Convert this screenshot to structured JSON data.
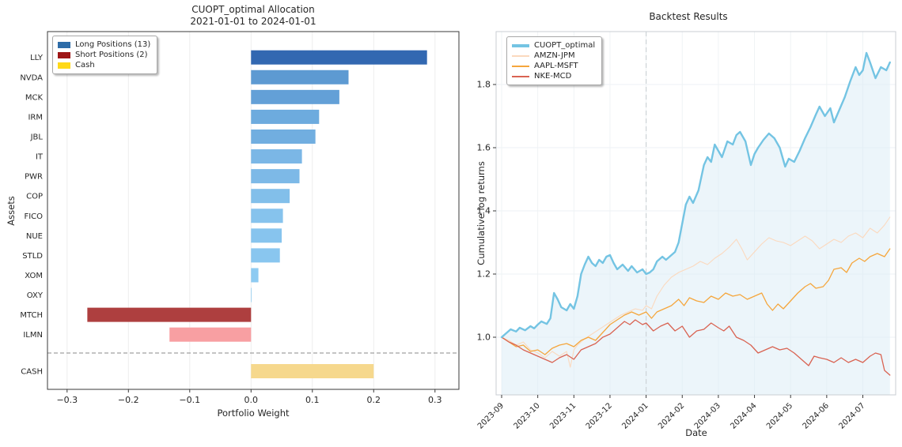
{
  "figure": {
    "background": "#ffffff"
  },
  "chart_data": [
    {
      "type": "bar",
      "orientation": "horizontal",
      "title": "CUOPT_optimal Allocation",
      "subtitle": "2021-01-01 to 2024-01-01",
      "xlabel": "Portfolio Weight",
      "ylabel": "Assets",
      "xlim": [
        -0.332,
        0.339
      ],
      "grid": "vertical-faint",
      "xticks": {
        "values": [
          -0.3,
          -0.2,
          -0.1,
          0.0,
          0.1,
          0.2,
          0.3
        ],
        "labels": [
          "−0.3",
          "−0.2",
          "−0.1",
          "0.0",
          "0.1",
          "0.2",
          "0.3"
        ]
      },
      "legend": {
        "position": "upper left",
        "items": [
          {
            "label": "Long Positions (13)",
            "color": "#2e6ca8"
          },
          {
            "label": "Short Positions (2)",
            "color": "#9e1616"
          },
          {
            "label": "Cash",
            "color": "#ffd918"
          }
        ]
      },
      "separator_before_last_row": true,
      "bars": [
        {
          "asset": "LLY",
          "value": 0.287,
          "color": "#3268b1",
          "group": "long"
        },
        {
          "asset": "NVDA",
          "value": 0.159,
          "color": "#5d9ad2",
          "group": "long"
        },
        {
          "asset": "MCK",
          "value": 0.144,
          "color": "#63a0d7",
          "group": "long"
        },
        {
          "asset": "IRM",
          "value": 0.111,
          "color": "#6dabde",
          "group": "long"
        },
        {
          "asset": "JBL",
          "value": 0.105,
          "color": "#71aee0",
          "group": "long"
        },
        {
          "asset": "IT",
          "value": 0.083,
          "color": "#7bb7e6",
          "group": "long"
        },
        {
          "asset": "PWR",
          "value": 0.079,
          "color": "#7db9e7",
          "group": "long"
        },
        {
          "asset": "COP",
          "value": 0.063,
          "color": "#82bfea",
          "group": "long"
        },
        {
          "asset": "FICO",
          "value": 0.052,
          "color": "#86c3ed",
          "group": "long"
        },
        {
          "asset": "NUE",
          "value": 0.05,
          "color": "#87c4ee",
          "group": "long"
        },
        {
          "asset": "STLD",
          "value": 0.047,
          "color": "#89c6ef",
          "group": "long"
        },
        {
          "asset": "XOM",
          "value": 0.012,
          "color": "#8ecbf2",
          "group": "long"
        },
        {
          "asset": "OXY",
          "value": 0.001,
          "color": "#90cdf3",
          "group": "long"
        },
        {
          "asset": "MTCH",
          "value": -0.267,
          "color": "#ae3f3f",
          "group": "short"
        },
        {
          "asset": "ILMN",
          "value": -0.133,
          "color": "#f89fa2",
          "group": "short"
        },
        {
          "asset": "CASH",
          "value": 0.2,
          "color": "#f6d88d",
          "group": "cash"
        }
      ]
    },
    {
      "type": "line",
      "title": "Backtest Results",
      "xlabel": "Date",
      "ylabel": "Cumulative log returns",
      "ylim": [
        0.8175,
        1.9675
      ],
      "grid": "both-faint",
      "yticks": {
        "values": [
          1.0,
          1.2,
          1.4,
          1.6,
          1.8
        ],
        "labels": [
          "1.0",
          "1.2",
          "1.4",
          "1.6",
          "1.8"
        ]
      },
      "xticks": {
        "values": [
          0,
          1,
          2,
          3,
          4,
          5,
          6,
          7,
          8,
          9,
          10
        ],
        "labels": [
          "2023-09",
          "2023-10",
          "2023-11",
          "2023-12",
          "2024-01",
          "2024-02",
          "2024-03",
          "2024-04",
          "2024-05",
          "2024-06",
          "2024-07"
        ]
      },
      "vline": {
        "x": 4,
        "at_label": "2024-01",
        "style": "dashed",
        "color": "#cdd3d7"
      },
      "legend": {
        "position": "upper left",
        "items": [
          {
            "label": "CUOPT_optimal",
            "color": "#74c4e3"
          },
          {
            "label": "AMZN-JPM",
            "color": "#fbd9be"
          },
          {
            "label": "AAPL-MSFT",
            "color": "#f5a63c"
          },
          {
            "label": "NKE-MCD",
            "color": "#d96352"
          }
        ]
      },
      "series": [
        {
          "name": "CUOPT_optimal",
          "color": "#74c4e3",
          "width": 2.4,
          "fill": "#d9ecf5",
          "x": [
            0,
            0.1,
            0.25,
            0.4,
            0.5,
            0.65,
            0.8,
            0.9,
            1.0,
            1.1,
            1.25,
            1.35,
            1.45,
            1.55,
            1.65,
            1.8,
            1.9,
            2.0,
            2.1,
            2.2,
            2.3,
            2.4,
            2.5,
            2.6,
            2.7,
            2.8,
            2.9,
            3.0,
            3.1,
            3.2,
            3.35,
            3.5,
            3.6,
            3.75,
            3.9,
            4.0,
            4.1,
            4.2,
            4.3,
            4.45,
            4.55,
            4.7,
            4.8,
            4.9,
            5.0,
            5.1,
            5.2,
            5.3,
            5.45,
            5.6,
            5.7,
            5.8,
            5.9,
            6.0,
            6.1,
            6.25,
            6.4,
            6.5,
            6.6,
            6.75,
            6.9,
            7.0,
            7.1,
            7.25,
            7.4,
            7.55,
            7.7,
            7.85,
            7.95,
            8.1,
            8.25,
            8.4,
            8.55,
            8.7,
            8.8,
            8.95,
            9.1,
            9.2,
            9.35,
            9.5,
            9.65,
            9.8,
            9.9,
            10.0,
            10.1,
            10.2,
            10.35,
            10.5,
            10.65,
            10.75
          ],
          "y": [
            1.0,
            1.01,
            1.025,
            1.018,
            1.03,
            1.022,
            1.035,
            1.028,
            1.04,
            1.05,
            1.042,
            1.06,
            1.14,
            1.12,
            1.095,
            1.085,
            1.105,
            1.09,
            1.13,
            1.2,
            1.23,
            1.255,
            1.235,
            1.225,
            1.245,
            1.235,
            1.255,
            1.26,
            1.235,
            1.215,
            1.23,
            1.21,
            1.225,
            1.205,
            1.215,
            1.2,
            1.205,
            1.215,
            1.24,
            1.255,
            1.245,
            1.26,
            1.27,
            1.3,
            1.36,
            1.42,
            1.445,
            1.425,
            1.465,
            1.545,
            1.57,
            1.555,
            1.61,
            1.59,
            1.57,
            1.62,
            1.61,
            1.64,
            1.65,
            1.62,
            1.545,
            1.58,
            1.6,
            1.625,
            1.645,
            1.63,
            1.6,
            1.54,
            1.565,
            1.555,
            1.59,
            1.63,
            1.665,
            1.705,
            1.73,
            1.7,
            1.725,
            1.68,
            1.72,
            1.76,
            1.81,
            1.855,
            1.83,
            1.845,
            1.9,
            1.87,
            1.82,
            1.855,
            1.845,
            1.87
          ]
        },
        {
          "name": "AMZN-JPM",
          "color": "#fbd9be",
          "width": 1.1,
          "x": [
            0,
            0.2,
            0.4,
            0.6,
            0.8,
            1.0,
            1.2,
            1.4,
            1.6,
            1.8,
            1.9,
            2.0,
            2.1,
            2.3,
            2.5,
            2.7,
            2.9,
            3.1,
            3.3,
            3.5,
            3.7,
            3.9,
            4.0,
            4.15,
            4.3,
            4.5,
            4.7,
            4.9,
            5.1,
            5.3,
            5.5,
            5.7,
            5.9,
            6.1,
            6.3,
            6.5,
            6.65,
            6.8,
            7.0,
            7.2,
            7.4,
            7.6,
            7.8,
            8.0,
            8.2,
            8.4,
            8.6,
            8.8,
            9.0,
            9.2,
            9.4,
            9.6,
            9.8,
            10.0,
            10.2,
            10.4,
            10.6,
            10.75
          ],
          "y": [
            1.0,
            0.99,
            0.975,
            0.985,
            0.96,
            0.95,
            0.935,
            0.955,
            0.94,
            0.955,
            0.905,
            0.96,
            0.975,
            0.995,
            1.01,
            1.025,
            1.04,
            1.055,
            1.07,
            1.08,
            1.09,
            1.085,
            1.1,
            1.09,
            1.13,
            1.165,
            1.19,
            1.205,
            1.215,
            1.225,
            1.24,
            1.23,
            1.25,
            1.265,
            1.285,
            1.31,
            1.28,
            1.245,
            1.27,
            1.295,
            1.315,
            1.305,
            1.3,
            1.29,
            1.305,
            1.32,
            1.305,
            1.28,
            1.295,
            1.31,
            1.3,
            1.32,
            1.33,
            1.315,
            1.345,
            1.33,
            1.355,
            1.38
          ]
        },
        {
          "name": "AAPL-MSFT",
          "color": "#f5a63c",
          "width": 1.3,
          "x": [
            0,
            0.2,
            0.4,
            0.6,
            0.8,
            1.0,
            1.2,
            1.4,
            1.6,
            1.8,
            2.0,
            2.2,
            2.4,
            2.6,
            2.8,
            3.0,
            3.2,
            3.4,
            3.6,
            3.8,
            4.0,
            4.15,
            4.3,
            4.5,
            4.7,
            4.9,
            5.05,
            5.2,
            5.4,
            5.6,
            5.8,
            6.0,
            6.2,
            6.4,
            6.6,
            6.8,
            7.0,
            7.2,
            7.35,
            7.5,
            7.65,
            7.8,
            8.0,
            8.2,
            8.4,
            8.55,
            8.7,
            8.9,
            9.05,
            9.2,
            9.4,
            9.55,
            9.7,
            9.9,
            10.05,
            10.2,
            10.4,
            10.6,
            10.75
          ],
          "y": [
            1.0,
            0.985,
            0.97,
            0.975,
            0.955,
            0.96,
            0.945,
            0.965,
            0.975,
            0.98,
            0.97,
            0.99,
            1.0,
            0.99,
            1.015,
            1.04,
            1.055,
            1.07,
            1.08,
            1.07,
            1.08,
            1.06,
            1.08,
            1.09,
            1.1,
            1.12,
            1.1,
            1.125,
            1.115,
            1.11,
            1.13,
            1.12,
            1.14,
            1.13,
            1.135,
            1.12,
            1.13,
            1.14,
            1.105,
            1.085,
            1.105,
            1.09,
            1.115,
            1.14,
            1.16,
            1.17,
            1.155,
            1.16,
            1.18,
            1.215,
            1.22,
            1.205,
            1.235,
            1.25,
            1.24,
            1.255,
            1.265,
            1.255,
            1.28
          ]
        },
        {
          "name": "NKE-MCD",
          "color": "#d96352",
          "width": 1.3,
          "x": [
            0,
            0.2,
            0.4,
            0.6,
            0.8,
            1.0,
            1.2,
            1.4,
            1.6,
            1.8,
            2.0,
            2.2,
            2.4,
            2.6,
            2.8,
            3.0,
            3.2,
            3.4,
            3.55,
            3.7,
            3.9,
            4.0,
            4.2,
            4.4,
            4.6,
            4.8,
            5.0,
            5.2,
            5.4,
            5.6,
            5.8,
            6.0,
            6.15,
            6.3,
            6.5,
            6.7,
            6.9,
            7.1,
            7.3,
            7.5,
            7.7,
            7.9,
            8.1,
            8.3,
            8.5,
            8.65,
            8.8,
            9.0,
            9.2,
            9.4,
            9.6,
            9.8,
            10.0,
            10.2,
            10.35,
            10.5,
            10.6,
            10.75
          ],
          "y": [
            1.0,
            0.985,
            0.975,
            0.96,
            0.95,
            0.94,
            0.93,
            0.92,
            0.935,
            0.945,
            0.93,
            0.96,
            0.97,
            0.98,
            1.0,
            1.01,
            1.03,
            1.05,
            1.04,
            1.055,
            1.04,
            1.045,
            1.02,
            1.035,
            1.045,
            1.02,
            1.035,
            1.0,
            1.02,
            1.025,
            1.045,
            1.03,
            1.02,
            1.035,
            1.0,
            0.99,
            0.975,
            0.95,
            0.96,
            0.97,
            0.96,
            0.965,
            0.95,
            0.93,
            0.91,
            0.94,
            0.935,
            0.93,
            0.92,
            0.935,
            0.92,
            0.93,
            0.92,
            0.94,
            0.95,
            0.945,
            0.895,
            0.88
          ]
        }
      ]
    }
  ]
}
